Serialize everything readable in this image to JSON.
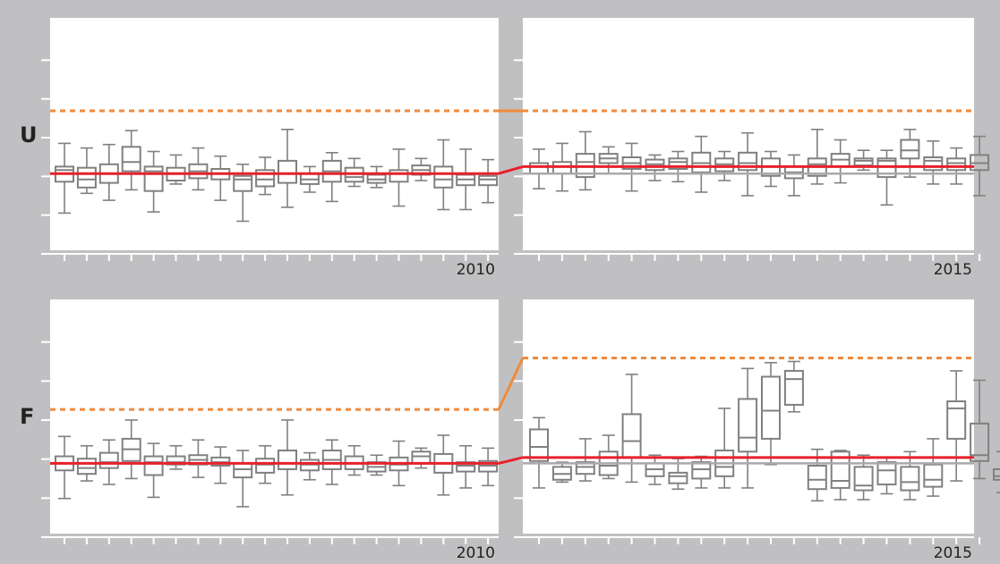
{
  "colors": {
    "background": "#c0c0c2",
    "plot": "#ffffff",
    "box": "#808080",
    "mean": "#e8202a",
    "threshold": "#f08a3c",
    "baseline": "#a9a9a9"
  },
  "chart_data": [
    {
      "type": "box",
      "label": "U",
      "ylim": [
        0,
        10
      ],
      "grid": false,
      "panels": [
        {
          "x_end_label": "2010",
          "threshold": 6,
          "mean": 3.3,
          "baseline": 3.3,
          "boxes": [
            {
              "q1": 2.95,
              "med": 3.45,
              "q3": 3.6,
              "min": 1.6,
              "max": 4.6
            },
            {
              "q1": 2.7,
              "med": 3.05,
              "q3": 3.55,
              "min": 2.45,
              "max": 4.4
            },
            {
              "q1": 2.9,
              "med": 3.3,
              "q3": 3.7,
              "min": 2.15,
              "max": 4.55
            },
            {
              "q1": 3.4,
              "med": 3.8,
              "q3": 4.45,
              "min": 2.6,
              "max": 5.15
            },
            {
              "q1": 2.55,
              "med": 3.4,
              "q3": 3.6,
              "min": 1.65,
              "max": 4.25
            },
            {
              "q1": 3.0,
              "med": 3.3,
              "q3": 3.55,
              "min": 2.85,
              "max": 4.1
            },
            {
              "q1": 3.1,
              "med": 3.4,
              "q3": 3.7,
              "min": 2.6,
              "max": 4.4
            },
            {
              "q1": 3.05,
              "med": 3.3,
              "q3": 3.5,
              "min": 2.15,
              "max": 4.05
            },
            {
              "q1": 2.55,
              "med": 3.05,
              "q3": 3.2,
              "min": 1.25,
              "max": 3.7
            },
            {
              "q1": 2.75,
              "med": 3.05,
              "q3": 3.45,
              "min": 2.4,
              "max": 4.0
            },
            {
              "q1": 2.9,
              "med": 3.3,
              "q3": 3.85,
              "min": 1.85,
              "max": 5.2
            },
            {
              "q1": 2.85,
              "med": 3.05,
              "q3": 3.3,
              "min": 2.5,
              "max": 3.6
            },
            {
              "q1": 2.95,
              "med": 3.4,
              "q3": 3.85,
              "min": 2.1,
              "max": 4.2
            },
            {
              "q1": 2.95,
              "med": 3.15,
              "q3": 3.55,
              "min": 2.75,
              "max": 3.95
            },
            {
              "q1": 2.9,
              "med": 3.05,
              "q3": 3.25,
              "min": 2.7,
              "max": 3.6
            },
            {
              "q1": 2.95,
              "med": 3.3,
              "q3": 3.45,
              "min": 1.9,
              "max": 4.35
            },
            {
              "q1": 3.25,
              "med": 3.45,
              "q3": 3.65,
              "min": 3.0,
              "max": 3.95
            },
            {
              "q1": 2.7,
              "med": 3.05,
              "q3": 3.6,
              "min": 1.75,
              "max": 4.75
            },
            {
              "q1": 2.8,
              "med": 3.05,
              "q3": 3.25,
              "min": 1.75,
              "max": 4.35
            },
            {
              "q1": 2.8,
              "med": 3.05,
              "q3": 3.2,
              "min": 2.05,
              "max": 3.9
            }
          ]
        },
        {
          "x_end_label": "2015",
          "threshold": 6,
          "mean": 3.6,
          "baseline": 3.3,
          "boxes": [
            {
              "q1": 3.3,
              "med": 3.6,
              "q3": 3.75,
              "min": 2.65,
              "max": 4.35
            },
            {
              "q1": 3.3,
              "med": 3.6,
              "q3": 3.8,
              "min": 2.55,
              "max": 4.6
            },
            {
              "q1": 3.15,
              "med": 3.8,
              "q3": 4.15,
              "min": 2.6,
              "max": 5.1
            },
            {
              "q1": 3.75,
              "med": 3.95,
              "q3": 4.15,
              "min": 3.3,
              "max": 4.45
            },
            {
              "q1": 3.5,
              "med": 3.75,
              "q3": 4.0,
              "min": 2.55,
              "max": 4.6
            },
            {
              "q1": 3.45,
              "med": 3.7,
              "q3": 3.9,
              "min": 3.0,
              "max": 4.1
            },
            {
              "q1": 3.5,
              "med": 3.8,
              "q3": 3.95,
              "min": 2.95,
              "max": 4.25
            },
            {
              "q1": 3.35,
              "med": 3.75,
              "q3": 4.2,
              "min": 2.5,
              "max": 4.9
            },
            {
              "q1": 3.4,
              "med": 3.7,
              "q3": 3.95,
              "min": 3.0,
              "max": 4.25
            },
            {
              "q1": 3.45,
              "med": 3.75,
              "q3": 4.2,
              "min": 2.35,
              "max": 5.05
            },
            {
              "q1": 3.2,
              "med": 3.6,
              "q3": 3.95,
              "min": 2.75,
              "max": 4.25
            },
            {
              "q1": 3.1,
              "med": 3.35,
              "q3": 3.6,
              "min": 2.35,
              "max": 4.1
            },
            {
              "q1": 3.2,
              "med": 3.7,
              "q3": 3.95,
              "min": 2.85,
              "max": 5.2
            },
            {
              "q1": 3.6,
              "med": 3.9,
              "q3": 4.15,
              "min": 2.9,
              "max": 4.75
            },
            {
              "q1": 3.65,
              "med": 3.85,
              "q3": 3.95,
              "min": 3.45,
              "max": 4.3
            },
            {
              "q1": 3.15,
              "med": 3.85,
              "q3": 3.95,
              "min": 1.95,
              "max": 4.3
            },
            {
              "q1": 3.95,
              "med": 4.3,
              "q3": 4.75,
              "min": 3.15,
              "max": 5.2
            },
            {
              "q1": 3.45,
              "med": 3.85,
              "q3": 4.0,
              "min": 2.85,
              "max": 4.7
            },
            {
              "q1": 3.45,
              "med": 3.75,
              "q3": 3.95,
              "min": 2.85,
              "max": 4.4
            },
            {
              "q1": 3.45,
              "med": 3.75,
              "q3": 4.1,
              "min": 2.35,
              "max": 4.9
            }
          ]
        }
      ]
    },
    {
      "type": "box",
      "label": "F",
      "ylim": [
        0,
        10
      ],
      "grid": false,
      "panels": [
        {
          "x_end_label": "2010",
          "threshold": 5.3,
          "mean": 3.0,
          "baseline": 3.0,
          "boxes": [
            {
              "q1": 2.7,
              "med": 3.0,
              "q3": 3.3,
              "min": 1.5,
              "max": 4.15
            },
            {
              "q1": 2.55,
              "med": 2.8,
              "q3": 3.2,
              "min": 2.25,
              "max": 3.75
            },
            {
              "q1": 2.8,
              "med": 3.05,
              "q3": 3.45,
              "min": 2.1,
              "max": 4.0
            },
            {
              "q1": 3.1,
              "med": 3.6,
              "q3": 4.05,
              "min": 2.35,
              "max": 4.85
            },
            {
              "q1": 2.5,
              "med": 3.05,
              "q3": 3.3,
              "min": 1.55,
              "max": 3.85
            },
            {
              "q1": 2.95,
              "med": 3.05,
              "q3": 3.3,
              "min": 2.75,
              "max": 3.75
            },
            {
              "q1": 2.95,
              "med": 3.15,
              "q3": 3.35,
              "min": 2.4,
              "max": 4.0
            },
            {
              "q1": 2.9,
              "med": 3.05,
              "q3": 3.25,
              "min": 2.15,
              "max": 3.7
            },
            {
              "q1": 2.4,
              "med": 2.75,
              "q3": 3.0,
              "min": 1.15,
              "max": 3.55
            },
            {
              "q1": 2.6,
              "med": 2.95,
              "q3": 3.2,
              "min": 2.15,
              "max": 3.75
            },
            {
              "q1": 2.75,
              "med": 3.0,
              "q3": 3.55,
              "min": 1.65,
              "max": 4.85,
              "light": true
            },
            {
              "q1": 2.7,
              "med": 2.95,
              "q3": 3.15,
              "min": 2.3,
              "max": 3.45
            },
            {
              "q1": 2.75,
              "med": 3.15,
              "q3": 3.55,
              "min": 2.1,
              "max": 4.0
            },
            {
              "q1": 2.75,
              "med": 3.0,
              "q3": 3.3,
              "min": 2.5,
              "max": 3.75
            },
            {
              "q1": 2.65,
              "med": 2.85,
              "q3": 3.05,
              "min": 2.5,
              "max": 3.35
            },
            {
              "q1": 2.7,
              "med": 2.95,
              "q3": 3.25,
              "min": 2.05,
              "max": 3.95
            },
            {
              "q1": 3.0,
              "med": 3.3,
              "q3": 3.5,
              "min": 2.8,
              "max": 3.65
            },
            {
              "q1": 2.6,
              "med": 3.0,
              "q3": 3.4,
              "min": 1.65,
              "max": 4.2
            },
            {
              "q1": 2.65,
              "med": 2.9,
              "q3": 3.05,
              "min": 1.95,
              "max": 3.75
            },
            {
              "q1": 2.65,
              "med": 2.9,
              "q3": 3.1,
              "min": 2.05,
              "max": 3.65
            }
          ]
        },
        {
          "x_end_label": "2015",
          "threshold": 7.5,
          "mean": 3.25,
          "baseline": 3.0,
          "boxes": [
            {
              "q1": 3.1,
              "med": 3.7,
              "q3": 4.45,
              "min": 1.95,
              "max": 4.95
            },
            {
              "q1": 2.3,
              "med": 2.55,
              "q3": 2.85,
              "min": 2.2,
              "max": 3.05
            },
            {
              "q1": 2.55,
              "med": 2.85,
              "q3": 3.05,
              "min": 2.25,
              "max": 4.05
            },
            {
              "q1": 2.5,
              "med": 2.9,
              "q3": 3.5,
              "min": 2.35,
              "max": 4.2
            },
            {
              "q1": 3.25,
              "med": 3.95,
              "q3": 5.1,
              "min": 2.2,
              "max": 6.8
            },
            {
              "q1": 2.45,
              "med": 2.75,
              "q3": 3.0,
              "min": 2.1,
              "max": 3.35
            },
            {
              "q1": 2.15,
              "med": 2.45,
              "q3": 2.6,
              "min": 1.9,
              "max": 3.2
            },
            {
              "q1": 2.35,
              "med": 2.75,
              "q3": 3.05,
              "min": 1.95,
              "max": 3.3
            },
            {
              "q1": 2.45,
              "med": 2.85,
              "q3": 3.55,
              "min": 1.95,
              "max": 5.35
            },
            {
              "q1": 3.5,
              "med": 4.1,
              "q3": 5.75,
              "min": 1.95,
              "max": 7.05
            },
            {
              "q1": 4.05,
              "med": 5.25,
              "q3": 6.7,
              "min": 2.95,
              "max": 7.3
            },
            {
              "q1": 5.5,
              "med": 6.6,
              "q3": 6.95,
              "min": 5.2,
              "max": 7.35
            },
            {
              "q1": 1.9,
              "med": 2.3,
              "q3": 2.9,
              "min": 1.4,
              "max": 3.6
            },
            {
              "q1": 1.95,
              "med": 2.25,
              "q3": 3.5,
              "min": 1.45,
              "max": 3.55
            },
            {
              "q1": 1.85,
              "med": 2.05,
              "q3": 2.85,
              "min": 1.45,
              "max": 3.35
            },
            {
              "q1": 2.1,
              "med": 2.7,
              "q3": 3.05,
              "min": 1.7,
              "max": 3.25
            },
            {
              "q1": 1.85,
              "med": 2.2,
              "q3": 2.85,
              "min": 1.45,
              "max": 3.5
            },
            {
              "q1": 2.0,
              "med": 2.3,
              "q3": 2.95,
              "min": 1.6,
              "max": 4.05
            },
            {
              "q1": 4.05,
              "med": 5.35,
              "q3": 5.65,
              "min": 2.25,
              "max": 6.95
            },
            {
              "q1": 3.1,
              "med": 3.35,
              "q3": 4.7,
              "min": 2.35,
              "max": 6.55
            }
          ],
          "extra_boxes": [
            {
              "q1": 2.3,
              "med": 2.45,
              "q3": 2.75,
              "min": 1.75,
              "max": 3.5
            }
          ]
        }
      ]
    }
  ]
}
